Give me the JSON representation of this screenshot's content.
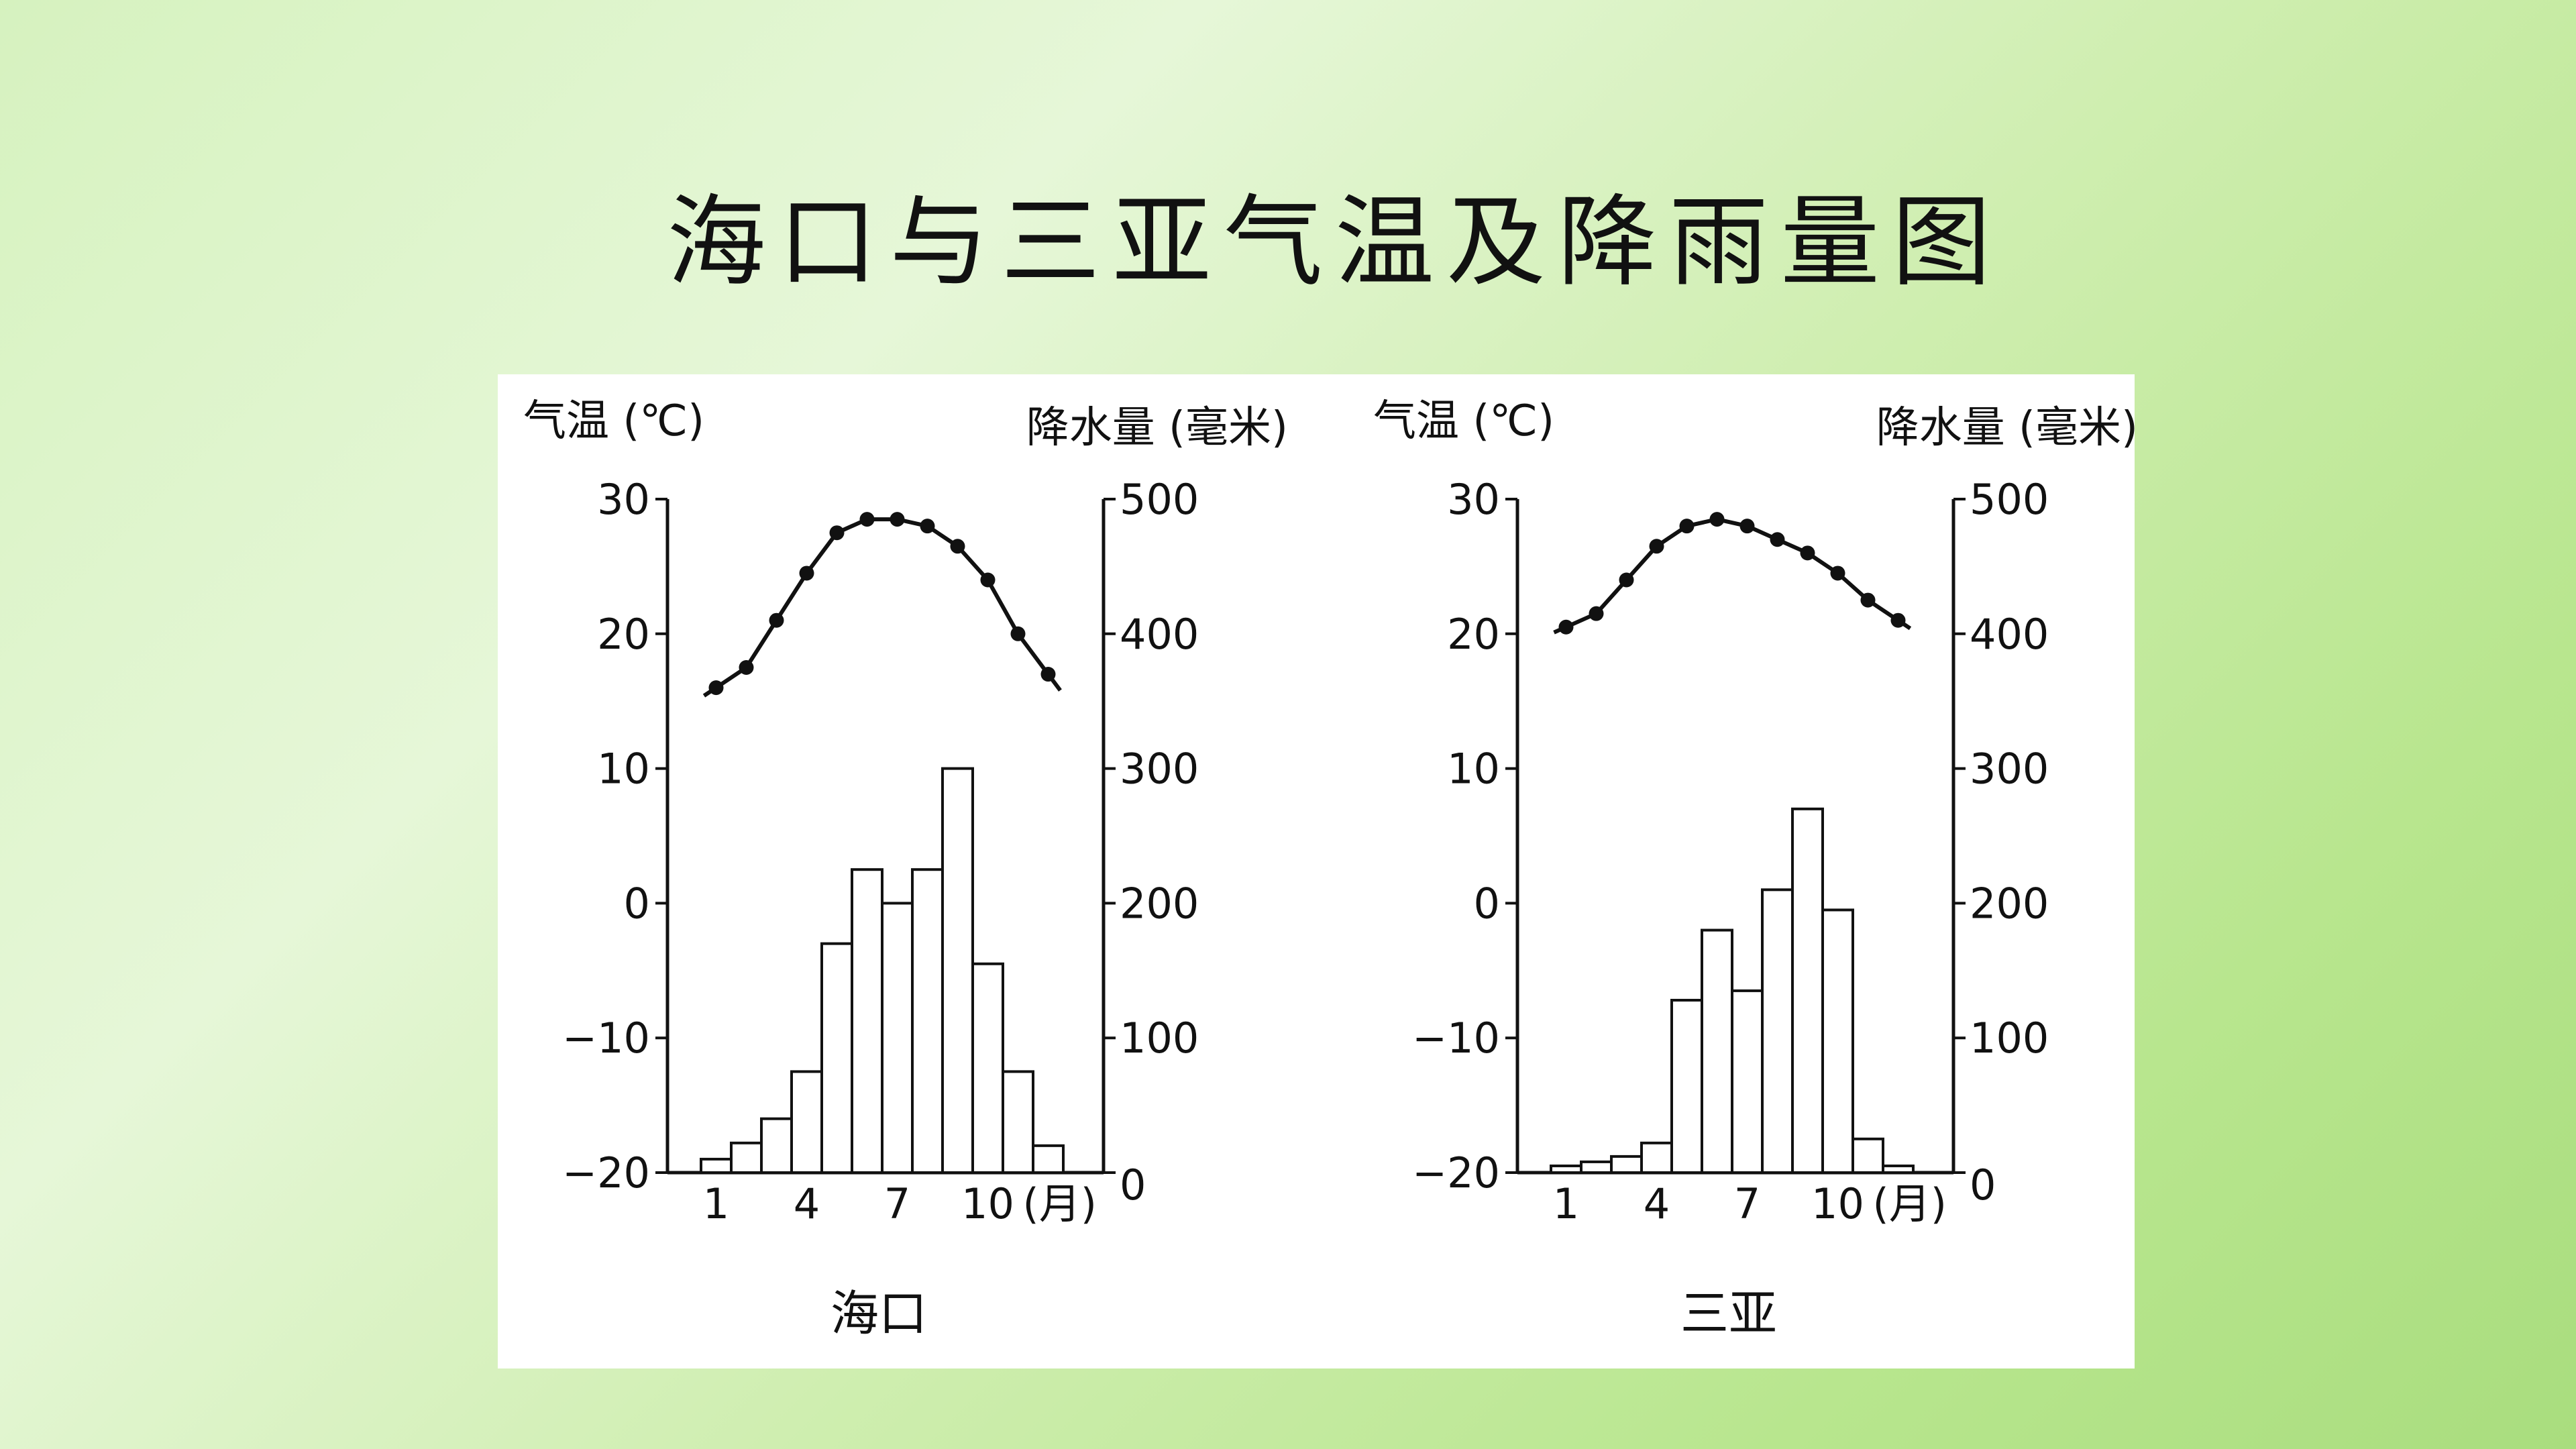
{
  "slide": {
    "title": "海口与三亚气温及降雨量图"
  },
  "colors": {
    "ink": "#111111",
    "bar_fill": "#ffffff",
    "panel": "#ffffff"
  },
  "chart_data": [
    {
      "type": "bar",
      "station": "海口",
      "month_unit": "(月)",
      "xticks": [
        "1",
        "4",
        "7",
        "10"
      ],
      "temp_axis": {
        "label": "气温 (℃)",
        "ticks": [
          30,
          20,
          10,
          0,
          -10,
          -20
        ],
        "ylim": [
          -20,
          30
        ]
      },
      "precip_axis": {
        "label": "降水量 (毫米)",
        "ticks": [
          500,
          400,
          300,
          200,
          100,
          0
        ],
        "ylim": [
          0,
          500
        ]
      },
      "months": [
        1,
        2,
        3,
        4,
        5,
        6,
        7,
        8,
        9,
        10,
        11,
        12
      ],
      "temperature": [
        16,
        17.5,
        21,
        24.5,
        27.5,
        28.5,
        28.5,
        28,
        26.5,
        24,
        20,
        17
      ],
      "precipitation": [
        10,
        22,
        40,
        75,
        170,
        225,
        200,
        225,
        300,
        155,
        75,
        20
      ]
    },
    {
      "type": "bar",
      "station": "三亚",
      "month_unit": "(月)",
      "xticks": [
        "1",
        "4",
        "7",
        "10"
      ],
      "temp_axis": {
        "label": "气温 (℃)",
        "ticks": [
          30,
          20,
          10,
          0,
          -10,
          -20
        ],
        "ylim": [
          -20,
          30
        ]
      },
      "precip_axis": {
        "label": "降水量 (毫米)",
        "ticks": [
          500,
          400,
          300,
          200,
          100,
          0
        ],
        "ylim": [
          0,
          500
        ]
      },
      "months": [
        1,
        2,
        3,
        4,
        5,
        6,
        7,
        8,
        9,
        10,
        11,
        12
      ],
      "temperature": [
        20.5,
        21.5,
        24,
        26.5,
        28,
        28.5,
        28,
        27,
        26,
        24.5,
        22.5,
        21
      ],
      "precipitation": [
        5,
        8,
        12,
        22,
        128,
        180,
        135,
        210,
        270,
        195,
        25,
        5
      ]
    }
  ]
}
